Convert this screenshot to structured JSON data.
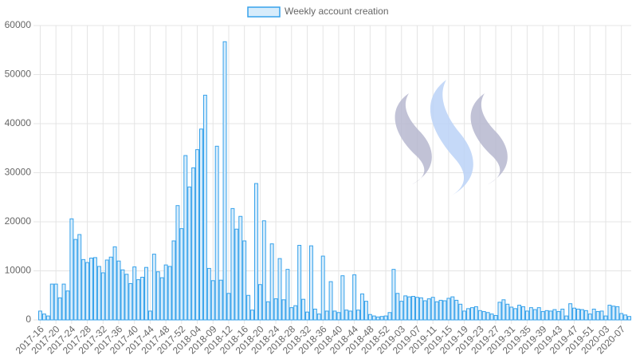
{
  "chart_data": {
    "type": "bar",
    "series": [
      {
        "name": "Weekly account creation",
        "color": "#36a2eb",
        "fill": "#d7ecfb",
        "values": [
          1800,
          1200,
          800,
          7300,
          7300,
          4500,
          7300,
          5900,
          20600,
          16400,
          17400,
          12300,
          11700,
          12600,
          12700,
          10900,
          9600,
          12200,
          12800,
          14900,
          12000,
          10200,
          9300,
          7400,
          10800,
          8200,
          8700,
          10700,
          1800,
          13400,
          9800,
          8600,
          11200,
          10900,
          16100,
          23300,
          18600,
          33500,
          27100,
          31000,
          34700,
          38900,
          45800,
          10500,
          8000,
          35400,
          8100,
          56700,
          5400,
          22700,
          18500,
          21100,
          16100,
          5000,
          2000,
          27800,
          7200,
          20200,
          3700,
          15500,
          4300,
          12500,
          4100,
          10300,
          2500,
          2900,
          15200,
          4200,
          1600,
          15100,
          2200,
          1200,
          13000,
          1800,
          7800,
          1800,
          1500,
          9000,
          2000,
          1800,
          9200,
          2000,
          5300,
          3800,
          1100,
          800,
          600,
          700,
          800,
          1500,
          10300,
          5400,
          3800,
          4900,
          4700,
          4800,
          4600,
          4500,
          3900,
          4300,
          4600,
          3700,
          4000,
          3900,
          4400,
          4700,
          4000,
          3200,
          1800,
          2300,
          2500,
          2700,
          1900,
          1700,
          1500,
          1200,
          900,
          3600,
          4100,
          3200,
          2600,
          2300,
          3000,
          2700,
          1800,
          2500,
          2100,
          2500,
          1700,
          1900,
          1800,
          2100,
          1700,
          2200,
          800,
          3300,
          2400,
          2200,
          2100,
          1900,
          1200,
          2200,
          1700,
          1800,
          800,
          3000,
          2800,
          2700,
          1300,
          1000,
          700
        ]
      }
    ],
    "categories": [
      "2017-16",
      null,
      null,
      null,
      "2017-20",
      null,
      null,
      null,
      "2017-24",
      null,
      null,
      null,
      "2017-28",
      null,
      null,
      null,
      "2017-32",
      null,
      null,
      null,
      "2017-36",
      null,
      null,
      null,
      "2017-40",
      null,
      null,
      null,
      "2017-44",
      null,
      null,
      null,
      "2017-48",
      null,
      null,
      null,
      "2017-52",
      null,
      null,
      null,
      "2018-04",
      null,
      null,
      null,
      "2018-09",
      null,
      null,
      null,
      "2018-12",
      null,
      null,
      null,
      "2018-16",
      null,
      null,
      null,
      "2018-20",
      null,
      null,
      null,
      "2018-24",
      null,
      null,
      null,
      "2018-28",
      null,
      null,
      null,
      "2018-32",
      null,
      null,
      null,
      "2018-36",
      null,
      null,
      null,
      "2018-40",
      null,
      null,
      null,
      "2018-44",
      null,
      null,
      null,
      "2018-48",
      null,
      null,
      null,
      "2018-52",
      null,
      null,
      null,
      "2019-03",
      null,
      null,
      null,
      "2019-07",
      null,
      null,
      null,
      "2019-11",
      null,
      null,
      null,
      "2019-15",
      null,
      null,
      null,
      "2019-19",
      null,
      null,
      null,
      "2019-23",
      null,
      null,
      null,
      "2019-27",
      null,
      null,
      null,
      "2019-31",
      null,
      null,
      null,
      "2019-35",
      null,
      null,
      null,
      "2019-39",
      null,
      null,
      null,
      "2019-43",
      null,
      null,
      null,
      "2019-47",
      null,
      null,
      null,
      "2019-51",
      null,
      null,
      null,
      "2020-03",
      null,
      null,
      null,
      "2020-07",
      null,
      null
    ],
    "ylim": [
      0,
      60000
    ],
    "yticks": [
      0,
      10000,
      20000,
      30000,
      40000,
      50000,
      60000
    ],
    "grid": true,
    "legend": "top"
  }
}
